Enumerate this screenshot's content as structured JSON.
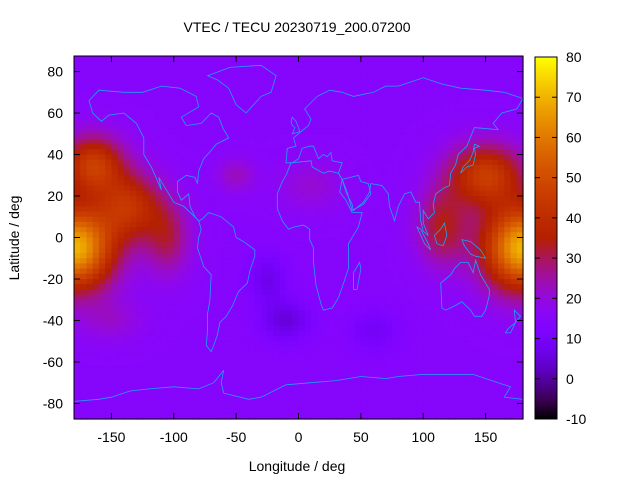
{
  "chart_data": {
    "type": "heatmap",
    "title": "VTEC / TECU 20230719_200.07200",
    "xlabel": "Longitude / deg",
    "ylabel": "Latitude / deg",
    "xlim": [
      -180,
      180
    ],
    "ylim": [
      -87.5,
      87.5
    ],
    "x_ticks": [
      -150,
      -100,
      -50,
      0,
      50,
      100,
      150
    ],
    "y_ticks": [
      -80,
      -60,
      -40,
      -20,
      0,
      20,
      40,
      60,
      80
    ],
    "colorbar": {
      "range": [
        -10,
        80
      ],
      "ticks": [
        -10,
        0,
        10,
        20,
        30,
        40,
        50,
        60,
        70,
        80
      ]
    },
    "grid": false,
    "background_level": 15,
    "features": [
      {
        "lon": -180,
        "lat": -5,
        "sx": 32,
        "sy": 20,
        "amp": 55
      },
      {
        "lon": 180,
        "lat": -5,
        "sx": 32,
        "sy": 20,
        "amp": 55
      },
      {
        "lon": -165,
        "lat": 35,
        "sx": 25,
        "sy": 14,
        "amp": 30
      },
      {
        "lon": -135,
        "lat": 15,
        "sx": 25,
        "sy": 16,
        "amp": 25
      },
      {
        "lon": -105,
        "lat": 0,
        "sx": 18,
        "sy": 18,
        "amp": 15
      },
      {
        "lon": 150,
        "lat": 30,
        "sx": 30,
        "sy": 15,
        "amp": 30
      },
      {
        "lon": 115,
        "lat": 5,
        "sx": 20,
        "sy": 18,
        "amp": 18
      },
      {
        "lon": -50,
        "lat": 30,
        "sx": 15,
        "sy": 8,
        "amp": 8
      },
      {
        "lon": 10,
        "lat": 25,
        "sx": 25,
        "sy": 12,
        "amp": 6
      },
      {
        "lon": -25,
        "lat": -20,
        "sx": 15,
        "sy": 12,
        "amp": -8
      },
      {
        "lon": -10,
        "lat": -40,
        "sx": 20,
        "sy": 10,
        "amp": -10
      },
      {
        "lon": 60,
        "lat": -45,
        "sx": 20,
        "sy": 10,
        "amp": -6
      },
      {
        "lon": -150,
        "lat": -40,
        "sx": 25,
        "sy": 10,
        "amp": 6
      }
    ]
  },
  "colors": {
    "coastline": "#1ea0ff",
    "plot_border": "#000000"
  }
}
